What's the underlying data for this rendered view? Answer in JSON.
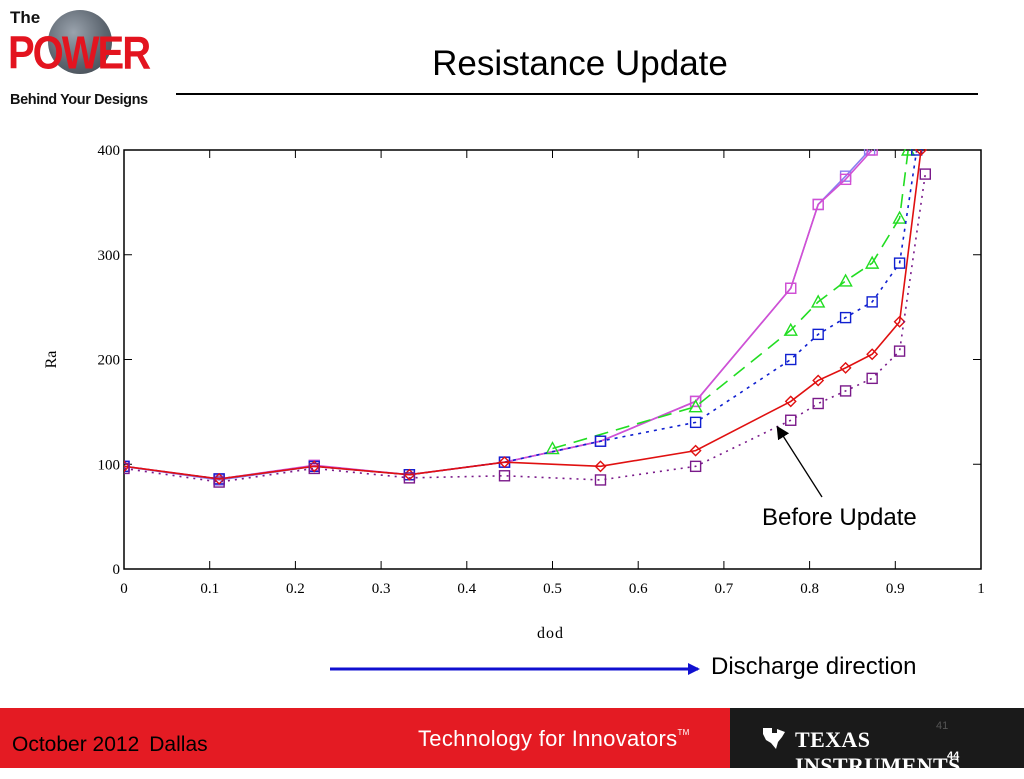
{
  "slide": {
    "title": "Resistance Update",
    "logo": {
      "line1": "The",
      "line2": "POWER",
      "line3": "Behind Your Designs"
    },
    "annotation": "Before Update",
    "direction_label": "Discharge direction",
    "footer": {
      "date": "October 2012",
      "place": "Dallas",
      "tagline": "Technology for Innovators",
      "trademark": "TM",
      "brand": "Texas Instruments",
      "page_ghost": "41",
      "page": "44"
    },
    "colors": {
      "footer_red": "#e41b23",
      "footer_dark": "#1a1a1a",
      "arrow_blue": "#1010d0"
    }
  },
  "chart_data": {
    "type": "line",
    "xlabel": "dod",
    "ylabel": "Ra",
    "xlim": [
      0,
      1
    ],
    "ylim": [
      0,
      400
    ],
    "xticks": [
      "0",
      "0.1",
      "0.2",
      "0.3",
      "0.4",
      "0.5",
      "0.6",
      "0.7",
      "0.8",
      "0.9",
      "1"
    ],
    "yticks": [
      "0",
      "100",
      "200",
      "300",
      "400"
    ],
    "grid": false,
    "series": [
      {
        "color": "#8a7cf0",
        "dash": "",
        "marker": "square",
        "x": [
          0,
          0.111,
          0.222,
          0.333,
          0.444,
          0.556,
          0.667,
          0.778,
          0.81,
          0.842,
          0.87
        ],
        "y": [
          98,
          85,
          98,
          90,
          102,
          122,
          160,
          268,
          348,
          375,
          400
        ]
      },
      {
        "color": "#d34fd3",
        "dash": "",
        "marker": "square",
        "x": [
          0,
          0.111,
          0.222,
          0.333,
          0.444,
          0.556,
          0.667,
          0.778,
          0.81,
          0.842,
          0.873
        ],
        "y": [
          98,
          86,
          99,
          90,
          102,
          122,
          160,
          268,
          348,
          372,
          400
        ]
      },
      {
        "color": "#22dd22",
        "dash": "14,8",
        "marker": "triangle",
        "x": [
          0.5,
          0.667,
          0.778,
          0.81,
          0.842,
          0.873,
          0.905,
          0.915
        ],
        "y": [
          115,
          155,
          228,
          255,
          275,
          292,
          335,
          400
        ]
      },
      {
        "color": "#1020d0",
        "dash": "3,5",
        "marker": "square",
        "x": [
          0,
          0.111,
          0.222,
          0.333,
          0.444,
          0.556,
          0.667,
          0.778,
          0.81,
          0.842,
          0.873,
          0.905,
          0.925
        ],
        "y": [
          98,
          86,
          98,
          90,
          102,
          122,
          140,
          200,
          224,
          240,
          255,
          292,
          400
        ]
      },
      {
        "color": "#e01010",
        "dash": "",
        "marker": "diamond",
        "x": [
          0,
          0.111,
          0.222,
          0.333,
          0.444,
          0.556,
          0.667,
          0.778,
          0.81,
          0.842,
          0.873,
          0.905,
          0.93
        ],
        "y": [
          98,
          86,
          98,
          90,
          102,
          98,
          113,
          160,
          180,
          192,
          205,
          236,
          400
        ]
      },
      {
        "color": "#7a1a8a",
        "dash": "2,5",
        "marker": "square",
        "x": [
          0,
          0.111,
          0.222,
          0.333,
          0.444,
          0.556,
          0.667,
          0.778,
          0.81,
          0.842,
          0.873,
          0.905,
          0.935
        ],
        "y": [
          96,
          83,
          96,
          87,
          89,
          85,
          98,
          142,
          158,
          170,
          182,
          208,
          377
        ]
      }
    ]
  }
}
